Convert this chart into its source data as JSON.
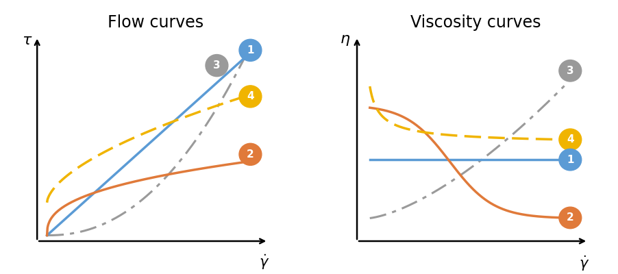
{
  "fig_width": 9.03,
  "fig_height": 4.0,
  "dpi": 100,
  "bg_color": "#ffffff",
  "flow_title": "Flow curves",
  "visc_title": "Viscosity curves",
  "title_fontsize": 17,
  "label_fontsize": 15,
  "colors": {
    "newtonian": "#5B9BD5",
    "pseudoplastic": "#E07A3A",
    "dilatant": "#9A9A9A",
    "thixotropic": "#F0B400"
  },
  "badges": {
    "1": {
      "color": "#5B9BD5",
      "text_color": "white"
    },
    "2": {
      "color": "#E07A3A",
      "text_color": "white"
    },
    "3": {
      "color": "#9A9A9A",
      "text_color": "white"
    },
    "4": {
      "color": "#F0B400",
      "text_color": "white"
    }
  }
}
